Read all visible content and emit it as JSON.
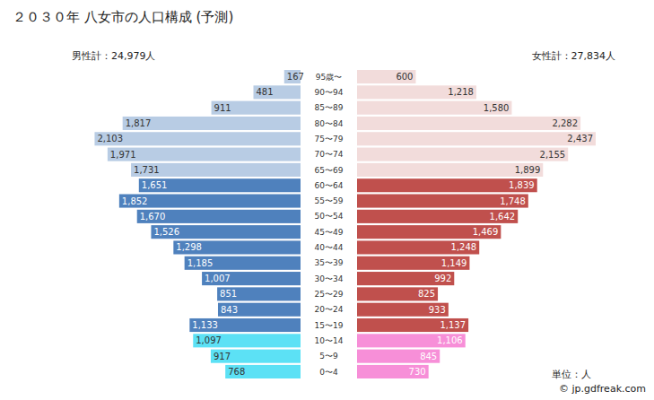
{
  "chart_data": {
    "type": "bar",
    "orientation": "horizontal",
    "title": "２０３０年 八女市の人口構成 (予測)",
    "data_labels": true,
    "tick_labels": false,
    "categories": [
      "95歳〜",
      "90〜94",
      "85〜89",
      "80〜84",
      "75〜79",
      "70〜74",
      "65〜69",
      "60〜64",
      "55〜59",
      "50〜54",
      "45〜49",
      "40〜44",
      "35〜39",
      "30〜34",
      "25〜29",
      "20〜24",
      "15〜19",
      "10〜14",
      "5〜9",
      "0〜4"
    ],
    "series": [
      {
        "name": "男性計：24,979人",
        "values": [
          167,
          481,
          911,
          1817,
          2103,
          1971,
          1731,
          1651,
          1852,
          1670,
          1526,
          1298,
          1185,
          1007,
          851,
          843,
          1133,
          1097,
          917,
          768
        ],
        "value_labels": [
          "167",
          "481",
          "911",
          "1,817",
          "2,103",
          "1,971",
          "1,731",
          "1,651",
          "1,852",
          "1,670",
          "1,526",
          "1,298",
          "1,185",
          "1,007",
          "851",
          "843",
          "1,133",
          "1,097",
          "917",
          "768"
        ],
        "colors": [
          "#b8cce4",
          "#b8cce4",
          "#b8cce4",
          "#b8cce4",
          "#b8cce4",
          "#b8cce4",
          "#b8cce4",
          "#4f81bd",
          "#4f81bd",
          "#4f81bd",
          "#4f81bd",
          "#4f81bd",
          "#4f81bd",
          "#4f81bd",
          "#4f81bd",
          "#4f81bd",
          "#4f81bd",
          "#5ce1f5",
          "#5ce1f5",
          "#5ce1f5"
        ]
      },
      {
        "name": "女性計：27,834人",
        "values": [
          600,
          1218,
          1580,
          2282,
          2437,
          2155,
          1899,
          1839,
          1748,
          1642,
          1469,
          1248,
          1149,
          992,
          825,
          933,
          1137,
          1106,
          845,
          730
        ],
        "value_labels": [
          "600",
          "1,218",
          "1,580",
          "2,282",
          "2,437",
          "2,155",
          "1,899",
          "1,839",
          "1,748",
          "1,642",
          "1,469",
          "1,248",
          "1,149",
          "992",
          "825",
          "933",
          "1,137",
          "1,106",
          "845",
          "730"
        ],
        "colors": [
          "#f2dcdb",
          "#f2dcdb",
          "#f2dcdb",
          "#f2dcdb",
          "#f2dcdb",
          "#f2dcdb",
          "#f2dcdb",
          "#c0504d",
          "#c0504d",
          "#c0504d",
          "#c0504d",
          "#c0504d",
          "#c0504d",
          "#c0504d",
          "#c0504d",
          "#c0504d",
          "#c0504d",
          "#f78fd8",
          "#f78fd8",
          "#f78fd8"
        ]
      }
    ],
    "annotations": [
      "単位：人",
      "© jp.gdfreak.com"
    ]
  }
}
